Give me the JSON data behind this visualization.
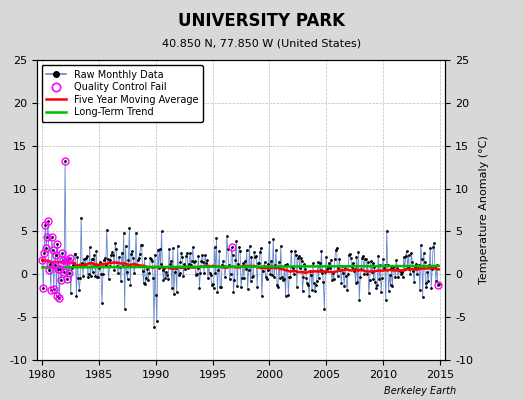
{
  "title": "UNIVERSITY PARK",
  "subtitle": "40.850 N, 77.850 W (United States)",
  "ylabel_right": "Temperature Anomaly (°C)",
  "watermark": "Berkeley Earth",
  "xlim": [
    1979.5,
    2015.5
  ],
  "ylim": [
    -10,
    25
  ],
  "yticks": [
    -10,
    -5,
    0,
    5,
    10,
    15,
    20,
    25
  ],
  "xticks": [
    1980,
    1985,
    1990,
    1995,
    2000,
    2005,
    2010,
    2015
  ],
  "background_color": "#d8d8d8",
  "plot_bg_color": "#ffffff",
  "grid_color": "#bbbbbb",
  "line_color": "#6688cc",
  "ma_color": "#ff0000",
  "trend_color": "#00bb00",
  "qc_color": "#ff00ff",
  "seed": 17,
  "n_months": 420,
  "start_year": 1980.0
}
